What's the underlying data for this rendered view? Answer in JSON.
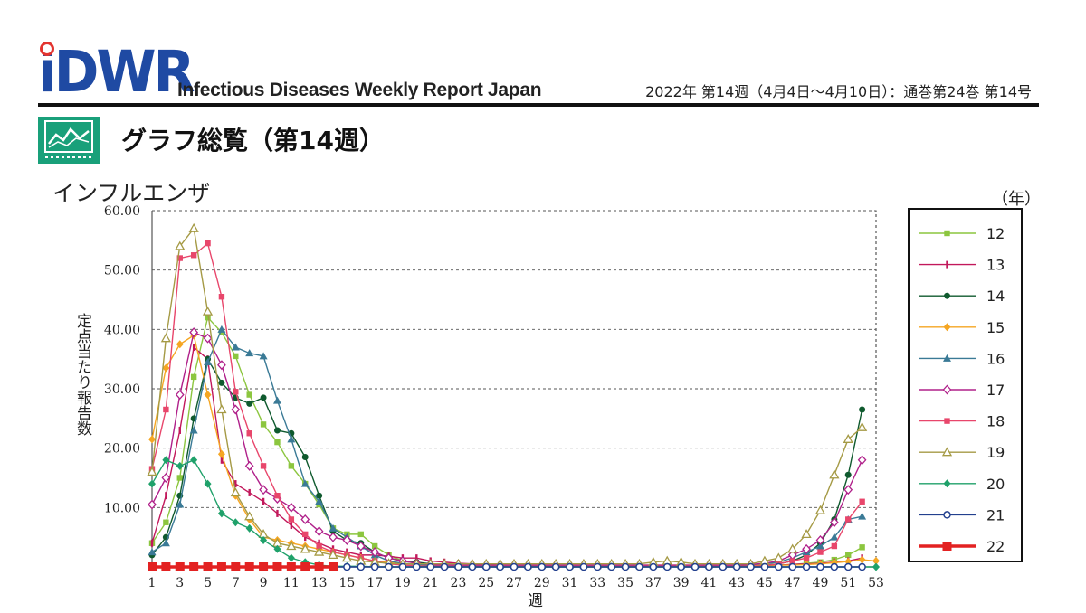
{
  "header": {
    "logo_text": "iDWR",
    "report_name": "Infectious Diseases Weekly Report Japan",
    "issue": "2022年 第14週（4月4日〜4月10日）：通巻第24巻  第14号"
  },
  "section": {
    "title": "グラフ総覧（第14週）",
    "icon": "line-chart-icon"
  },
  "chart_data": {
    "type": "line",
    "title": "インフルエンザ",
    "xlabel": "週",
    "ylabel": "定点当たり報告数",
    "legend_unit": "（年）",
    "legend_position": "right",
    "grid": true,
    "xlim": [
      1,
      53
    ],
    "ylim": [
      0,
      60
    ],
    "x_ticks": [
      1,
      3,
      5,
      7,
      9,
      11,
      13,
      15,
      17,
      19,
      21,
      23,
      25,
      27,
      29,
      31,
      33,
      35,
      37,
      39,
      41,
      43,
      45,
      47,
      49,
      51,
      53
    ],
    "y_ticks": [
      10,
      20,
      30,
      40,
      50,
      60
    ],
    "y_tick_labels": [
      "10.00",
      "20.00",
      "30.00",
      "40.00",
      "50.00",
      "60.00"
    ],
    "series": [
      {
        "name": "12",
        "color": "#8cc63f",
        "marker": "square",
        "values": [
          4,
          7.5,
          15,
          32,
          42,
          39.5,
          35.5,
          29,
          24,
          21,
          17,
          14,
          10.5,
          6.5,
          5.5,
          5.5,
          3.5,
          2,
          1,
          0.6,
          0.4,
          0.3,
          0.2,
          0.1,
          0.1,
          0.1,
          0.1,
          0.1,
          0.1,
          0.1,
          0.1,
          0.1,
          0.1,
          0.1,
          0.1,
          0.1,
          0.1,
          0.1,
          0.1,
          0.1,
          0.1,
          0.1,
          0.1,
          0.1,
          0.2,
          0.3,
          0.4,
          0.6,
          0.8,
          1.2,
          2,
          3.3
        ]
      },
      {
        "name": "13",
        "color": "#c2185b",
        "marker": "bar",
        "values": [
          4,
          12,
          23,
          37,
          35,
          18,
          14,
          12.5,
          11,
          9,
          7,
          5,
          4,
          3,
          2.5,
          2,
          2,
          1.8,
          1.5,
          1.5,
          1,
          0.8,
          0.6,
          0.5,
          0.4,
          0.3,
          0.3,
          0.3,
          0.2,
          0.2,
          0.2,
          0.2,
          0.2,
          0.2,
          0.2,
          0.2,
          0.2,
          0.2,
          0.2,
          0.2,
          0.2,
          0.2,
          0.2,
          0.2,
          0.3,
          0.3,
          0.4,
          0.5,
          0.6,
          0.8,
          1,
          1.5
        ]
      },
      {
        "name": "14",
        "color": "#0f5a2e",
        "marker": "circle",
        "values": [
          2,
          5,
          12,
          25,
          35,
          31,
          28.5,
          27.5,
          28.5,
          23,
          22.5,
          18.5,
          12,
          6,
          4.5,
          4,
          2.5,
          1.5,
          1,
          0.8,
          0.5,
          0.3,
          0.2,
          0.2,
          0.1,
          0.1,
          0.1,
          0.1,
          0.1,
          0.1,
          0.1,
          0.1,
          0.1,
          0.1,
          0.1,
          0.1,
          0.1,
          0.1,
          0.1,
          0.1,
          0.1,
          0.1,
          0.1,
          0.2,
          0.3,
          0.5,
          1,
          2,
          4,
          8,
          15.5,
          26.5
        ]
      },
      {
        "name": "15",
        "color": "#f5a623",
        "marker": "diamond",
        "values": [
          21.5,
          33.5,
          37.5,
          39,
          29,
          19,
          12,
          8,
          5,
          4.5,
          4,
          3.5,
          3,
          2.5,
          2,
          1.5,
          1,
          0.8,
          0.5,
          0.4,
          0.3,
          0.3,
          0.3,
          0.3,
          0.3,
          0.3,
          0.3,
          0.3,
          0.3,
          0.3,
          0.3,
          0.3,
          0.3,
          0.3,
          0.3,
          0.3,
          0.3,
          0.3,
          0.3,
          0.3,
          0.3,
          0.3,
          0.3,
          0.3,
          0.3,
          0.3,
          0.3,
          0.4,
          0.5,
          0.7,
          0.9,
          1.2,
          1
        ]
      },
      {
        "name": "16",
        "color": "#3a7a96",
        "marker": "triangle",
        "values": [
          2.5,
          4,
          10.5,
          23,
          34.5,
          40,
          37,
          36,
          35.5,
          28,
          21.5,
          14,
          11,
          6.5,
          5,
          3.5,
          2,
          1,
          0.6,
          0.4,
          0.3,
          0.3,
          0.2,
          0.2,
          0.2,
          0.2,
          0.2,
          0.2,
          0.2,
          0.2,
          0.2,
          0.2,
          0.2,
          0.2,
          0.2,
          0.2,
          0.2,
          0.2,
          0.2,
          0.2,
          0.2,
          0.2,
          0.3,
          0.4,
          0.5,
          0.8,
          1.5,
          2.5,
          3.5,
          5,
          8,
          8.5
        ]
      },
      {
        "name": "17",
        "color": "#b0208a",
        "marker": "open-diamond",
        "values": [
          10.5,
          15,
          29,
          39.5,
          38.5,
          34,
          26.5,
          17,
          13,
          11.5,
          10,
          8,
          6,
          5,
          4.5,
          3.5,
          2.5,
          1.5,
          1,
          0.6,
          0.4,
          0.3,
          0.3,
          0.3,
          0.3,
          0.3,
          0.3,
          0.3,
          0.3,
          0.3,
          0.3,
          0.3,
          0.3,
          0.3,
          0.3,
          0.3,
          0.3,
          0.3,
          0.3,
          0.3,
          0.3,
          0.3,
          0.3,
          0.4,
          0.6,
          1,
          2,
          3,
          4.5,
          7.5,
          13,
          18
        ]
      },
      {
        "name": "18",
        "color": "#e8466b",
        "marker": "square",
        "values": [
          16.5,
          26.5,
          52,
          52.5,
          54.5,
          45.5,
          29.5,
          22.5,
          17,
          12,
          8,
          5.5,
          3.5,
          2.5,
          2,
          1.5,
          1,
          0.5,
          0.3,
          0.2,
          0.1,
          0.1,
          0.1,
          0.1,
          0.1,
          0.1,
          0.1,
          0.1,
          0.1,
          0.1,
          0.1,
          0.1,
          0.1,
          0.1,
          0.1,
          0.1,
          0.1,
          0.1,
          0.1,
          0.1,
          0.1,
          0.1,
          0.1,
          0.1,
          0.2,
          0.5,
          1,
          1.5,
          2.5,
          3.5,
          8,
          11
        ]
      },
      {
        "name": "19",
        "color": "#a59a45",
        "marker": "open-triangle",
        "values": [
          16,
          38.5,
          54,
          57,
          43,
          26.5,
          12.5,
          8.5,
          5.5,
          4,
          3.5,
          3,
          2.5,
          2,
          1.5,
          1,
          0.8,
          0.6,
          0.5,
          0.5,
          0.5,
          0.5,
          0.5,
          0.5,
          0.5,
          0.5,
          0.5,
          0.5,
          0.5,
          0.5,
          0.5,
          0.5,
          0.5,
          0.5,
          0.5,
          0.5,
          0.8,
          1,
          0.8,
          0.5,
          0.5,
          0.5,
          0.5,
          0.5,
          1,
          1.5,
          3,
          5.5,
          9.5,
          15.5,
          21.5,
          23.5
        ]
      },
      {
        "name": "20",
        "color": "#1fa16a",
        "marker": "diamond",
        "values": [
          14,
          18,
          17,
          18,
          14,
          9,
          7.5,
          6.5,
          4.5,
          3,
          1.5,
          0.8,
          0.3,
          0.1,
          0.1,
          0.1,
          0,
          0,
          0,
          0,
          0,
          0,
          0,
          0,
          0,
          0,
          0,
          0,
          0,
          0,
          0,
          0,
          0,
          0,
          0,
          0,
          0,
          0,
          0,
          0,
          0,
          0,
          0,
          0,
          0,
          0,
          0,
          0,
          0,
          0,
          0,
          0,
          0
        ]
      },
      {
        "name": "21",
        "color": "#23408e",
        "marker": "open-circle",
        "values": [
          0,
          0,
          0,
          0,
          0,
          0,
          0,
          0,
          0,
          0,
          0,
          0,
          0,
          0,
          0,
          0,
          0,
          0,
          0,
          0,
          0,
          0,
          0,
          0,
          0,
          0,
          0,
          0,
          0,
          0,
          0,
          0,
          0,
          0,
          0,
          0,
          0,
          0,
          0,
          0,
          0,
          0,
          0,
          0,
          0,
          0,
          0,
          0,
          0,
          0,
          0,
          0
        ]
      },
      {
        "name": "22",
        "color": "#e32222",
        "marker": "square-bold",
        "values": [
          0,
          0,
          0,
          0,
          0,
          0,
          0,
          0,
          0,
          0,
          0,
          0,
          0,
          0
        ]
      }
    ]
  }
}
